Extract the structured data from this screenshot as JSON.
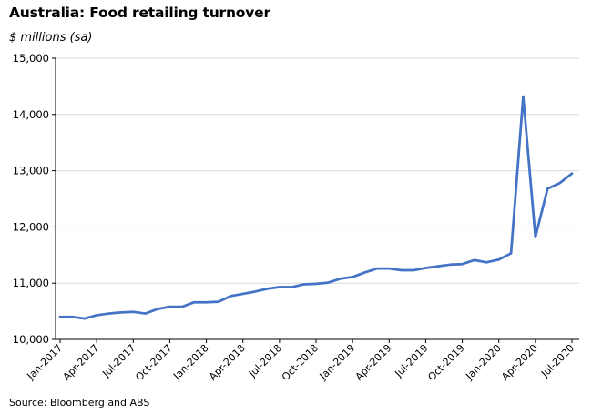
{
  "chart_data": {
    "type": "line",
    "title": "Australia: Food retailing turnover",
    "subtitle": "$ millions (sa)",
    "source": "Source: Bloomberg and ABS",
    "ylim": [
      10000,
      15000
    ],
    "yticks": [
      "10,000",
      "11,000",
      "12,000",
      "13,000",
      "14,000",
      "15,000"
    ],
    "x_tick_labels": [
      "Jan-2017",
      "Apr-2017",
      "Jul-2017",
      "Oct-2017",
      "Jan-2018",
      "Apr-2018",
      "Jul-2018",
      "Oct-2018",
      "Jan-2019",
      "Apr-2019",
      "Jul-2019",
      "Oct-2019",
      "Jan-2020",
      "Apr-2020",
      "Jul-2020"
    ],
    "grid": "horizontal",
    "line_color": "#4472C4",
    "series": [
      {
        "values": [
          10400,
          10400,
          10370,
          10430,
          10460,
          10480,
          10490,
          10460,
          10540,
          10580,
          10580,
          10660,
          10660,
          10670,
          10770,
          10810,
          10850,
          10900,
          10930,
          10930,
          10980,
          10990,
          11010,
          11080,
          11110,
          11190,
          11260,
          11260,
          11230,
          11230,
          11270,
          11300,
          11330,
          11340,
          11410,
          11370,
          11420,
          11530,
          14320,
          11820,
          12680,
          12780,
          12950
        ]
      }
    ]
  }
}
